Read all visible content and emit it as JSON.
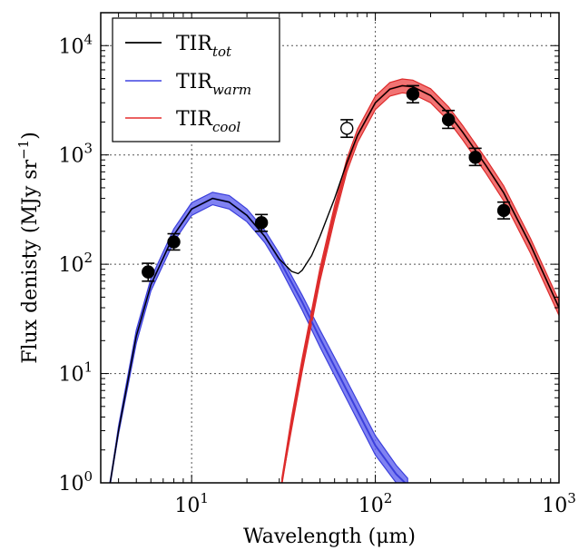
{
  "chart_data": {
    "type": "line",
    "xlabel": "Wavelength (μm)",
    "ylabel": "Flux denisty (MJy sr",
    "ylabel_sup": "−1",
    "ylabel_close": ")",
    "x_scale": "log",
    "y_scale": "log",
    "xlim": [
      3.2,
      1000
    ],
    "ylim": [
      1,
      20000
    ],
    "grid": true,
    "legend_position": "top-left",
    "x_ticks": [
      {
        "value": 10,
        "base": "10",
        "exp": "1"
      },
      {
        "value": 100,
        "base": "10",
        "exp": "2"
      },
      {
        "value": 1000,
        "base": "10",
        "exp": "3"
      }
    ],
    "y_ticks": [
      {
        "value": 1,
        "base": "10",
        "exp": "0"
      },
      {
        "value": 10,
        "base": "10",
        "exp": "1"
      },
      {
        "value": 100,
        "base": "10",
        "exp": "2"
      },
      {
        "value": 1000,
        "base": "10",
        "exp": "3"
      },
      {
        "value": 10000,
        "base": "10",
        "exp": "4"
      }
    ],
    "legend": [
      {
        "base": "TIR",
        "sub": "tot",
        "color": "#000000"
      },
      {
        "base": "TIR",
        "sub": "warm",
        "color": "#5a5ee6"
      },
      {
        "base": "TIR",
        "sub": "cool",
        "color": "#e84b4b"
      }
    ],
    "series": [
      {
        "name": "TIRwarm",
        "color": "#3b3fdc",
        "band_color": "#6a6cf0",
        "x": [
          3.6,
          4,
          5,
          6,
          8,
          10,
          13,
          16,
          20,
          25,
          30,
          40,
          50,
          70,
          100,
          130,
          150
        ],
        "y": [
          1,
          3,
          22,
          65,
          185,
          320,
          400,
          370,
          280,
          180,
          110,
          45,
          21,
          7,
          2.2,
          1.2,
          0.95
        ],
        "y_lo": [
          1,
          2.8,
          19,
          57,
          160,
          280,
          350,
          320,
          245,
          158,
          96,
          38,
          17.5,
          5.8,
          1.8,
          1.0,
          0.8
        ],
        "y_hi": [
          1,
          3.3,
          25,
          74,
          210,
          365,
          455,
          425,
          320,
          205,
          126,
          52,
          25,
          8.6,
          2.7,
          1.45,
          1.1
        ]
      },
      {
        "name": "TIRcool",
        "color": "#dd2b2b",
        "band_color": "#ee5a5a",
        "x": [
          31,
          35,
          40,
          50,
          60,
          70,
          80,
          100,
          120,
          140,
          160,
          200,
          250,
          300,
          400,
          500,
          700,
          1000
        ],
        "y": [
          1,
          3.5,
          12,
          80,
          300,
          800,
          1500,
          3000,
          4000,
          4300,
          4200,
          3500,
          2400,
          1600,
          800,
          450,
          150,
          40
        ],
        "y_lo": [
          1,
          3.1,
          10.5,
          70,
          260,
          700,
          1300,
          2600,
          3450,
          3700,
          3600,
          3000,
          2050,
          1360,
          680,
          380,
          126,
          34
        ],
        "y_hi": [
          1.1,
          4.0,
          13.8,
          92,
          345,
          920,
          1720,
          3450,
          4600,
          4950,
          4830,
          4030,
          2760,
          1840,
          920,
          520,
          172,
          46
        ]
      },
      {
        "name": "TIRtot",
        "color": "#000000",
        "x": [
          3.6,
          4,
          5,
          6,
          8,
          10,
          13,
          16,
          20,
          25,
          30,
          35,
          38,
          40,
          45,
          50,
          60,
          70,
          80,
          100,
          120,
          140,
          160,
          200,
          250,
          300,
          400,
          500,
          700,
          1000
        ],
        "y": [
          1,
          3,
          22,
          65,
          185,
          320,
          400,
          370,
          280,
          180,
          112,
          86,
          82,
          88,
          120,
          180,
          400,
          850,
          1520,
          3000,
          4000,
          4300,
          4200,
          3500,
          2400,
          1600,
          800,
          450,
          150,
          40
        ]
      }
    ],
    "points": [
      {
        "x": 5.8,
        "y": 85,
        "err_lo": 70,
        "err_hi": 102,
        "filled": true
      },
      {
        "x": 8.0,
        "y": 160,
        "err_lo": 135,
        "err_hi": 190,
        "filled": true
      },
      {
        "x": 24,
        "y": 240,
        "err_lo": 200,
        "err_hi": 285,
        "filled": true
      },
      {
        "x": 70,
        "y": 1750,
        "err_lo": 1450,
        "err_hi": 2100,
        "filled": false
      },
      {
        "x": 160,
        "y": 3600,
        "err_lo": 3000,
        "err_hi": 4300,
        "filled": true
      },
      {
        "x": 250,
        "y": 2100,
        "err_lo": 1750,
        "err_hi": 2550,
        "filled": true
      },
      {
        "x": 350,
        "y": 950,
        "err_lo": 800,
        "err_hi": 1150,
        "filled": true
      },
      {
        "x": 500,
        "y": 310,
        "err_lo": 260,
        "err_hi": 370,
        "filled": true
      }
    ]
  }
}
